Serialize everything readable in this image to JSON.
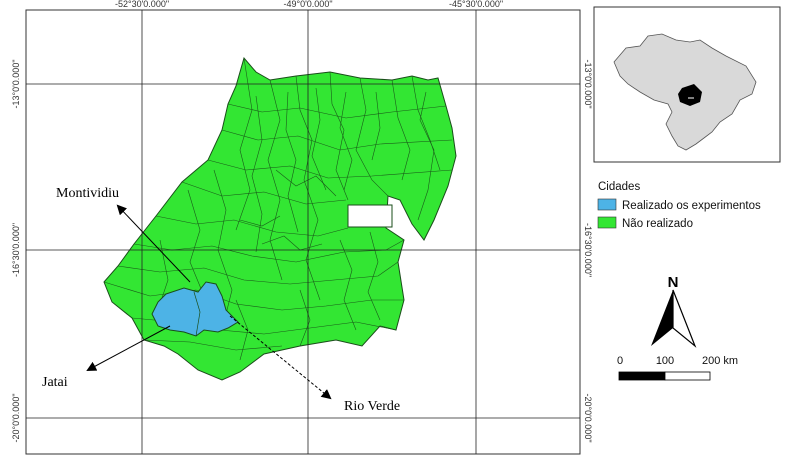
{
  "map": {
    "top_coords": [
      "-52°30'0.000\"",
      "-49°0'0.000\"",
      "-45°30'0.000\""
    ],
    "left_coords": [
      "-13°0'0.000\"",
      "-16°30'0.000\"",
      "-20°0'0.000\""
    ],
    "right_coords": [
      "-13°0'0.000\"",
      "-16°30'0.000\"",
      "-20°0'0.000\""
    ],
    "cities": {
      "montividiu": "Montividiu",
      "jatai": "Jatai",
      "rio_verde": "Rio Verde"
    }
  },
  "legend": {
    "title": "Cidades",
    "items": [
      {
        "label": "Realizado os experimentos",
        "color": "#4db3e6"
      },
      {
        "label": "Não realizado",
        "color": "#33e633"
      }
    ]
  },
  "north_arrow": {
    "label": "N"
  },
  "scale_bar": {
    "ticks": [
      "0",
      "100",
      "200 km"
    ]
  },
  "colors": {
    "not_realized": "#33e633",
    "realized": "#4db3e6",
    "brazil": "#d9d9d9",
    "goias_highlight": "#000000"
  }
}
